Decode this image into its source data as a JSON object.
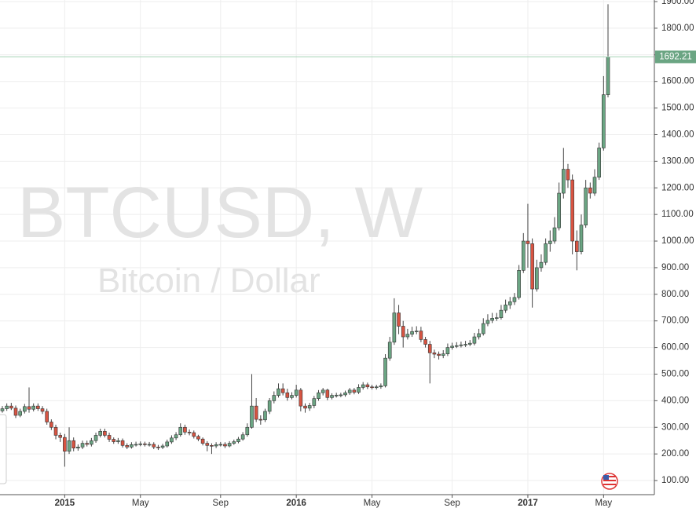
{
  "chart_data": {
    "type": "candlestick",
    "title": "BTCUSD, W",
    "subtitle": "Bitcoin / Dollar",
    "categories": [
      null,
      null,
      null,
      null,
      null,
      null,
      null,
      null,
      null,
      null,
      null,
      null,
      null,
      null,
      "2015",
      null,
      null,
      null,
      null,
      null,
      null,
      null,
      null,
      null,
      null,
      null,
      null,
      null,
      null,
      null,
      null,
      "May",
      null,
      null,
      null,
      null,
      null,
      null,
      null,
      null,
      null,
      null,
      null,
      null,
      null,
      null,
      null,
      null,
      null,
      "Sep",
      null,
      null,
      null,
      null,
      null,
      null,
      null,
      null,
      null,
      null,
      null,
      null,
      null,
      null,
      null,
      null,
      "2016",
      null,
      null,
      null,
      null,
      null,
      null,
      null,
      null,
      null,
      null,
      null,
      null,
      null,
      null,
      null,
      null,
      "May",
      null,
      null,
      null,
      null,
      null,
      null,
      null,
      null,
      null,
      null,
      null,
      null,
      null,
      null,
      null,
      null,
      null,
      "Sep",
      null,
      null,
      null,
      null,
      null,
      null,
      null,
      null,
      null,
      null,
      null,
      null,
      null,
      null,
      null,
      null,
      "2017",
      null,
      null,
      null,
      null,
      null,
      null,
      null,
      null,
      null,
      null,
      null,
      null,
      null,
      null,
      null,
      null,
      "May",
      null
    ],
    "open": [
      362,
      370,
      380,
      372,
      345,
      360,
      378,
      368,
      380,
      370,
      360,
      320,
      300,
      270,
      262,
      210,
      250,
      222,
      226,
      240,
      236,
      250,
      270,
      285,
      270,
      255,
      246,
      250,
      232,
      226,
      235,
      236,
      238,
      235,
      236,
      226,
      225,
      230,
      245,
      260,
      272,
      300,
      282,
      280,
      266,
      256,
      240,
      232,
      230,
      235,
      236,
      230,
      240,
      246,
      256,
      272,
      300,
      380,
      330,
      328,
      360,
      400,
      420,
      445,
      430,
      412,
      420,
      440,
      380,
      372,
      382,
      408,
      430,
      440,
      412,
      420,
      421,
      422,
      430,
      440,
      432,
      450,
      460,
      452,
      450,
      452,
      456,
      560,
      620,
      730,
      680,
      640,
      650,
      660,
      662,
      630,
      612,
      580,
      575,
      570,
      576,
      600,
      605,
      607,
      610,
      612,
      616,
      640,
      652,
      690,
      702,
      710,
      712,
      740,
      760,
      772,
      788,
      890,
      1000,
      990,
      820,
      900,
      920,
      990,
      1000,
      1050,
      1180,
      1270,
      1230,
      1000,
      960,
      1060,
      1200,
      1180,
      1240,
      1350,
      1550
    ],
    "high": [
      380,
      390,
      392,
      382,
      370,
      388,
      450,
      390,
      390,
      380,
      370,
      330,
      310,
      280,
      275,
      300,
      262,
      236,
      250,
      250,
      260,
      280,
      295,
      295,
      280,
      262,
      260,
      258,
      240,
      244,
      246,
      247,
      246,
      245,
      244,
      234,
      238,
      254,
      270,
      282,
      315,
      310,
      292,
      288,
      272,
      262,
      248,
      240,
      244,
      245,
      244,
      248,
      254,
      264,
      282,
      315,
      500,
      410,
      345,
      370,
      410,
      435,
      465,
      465,
      445,
      432,
      460,
      448,
      390,
      392,
      418,
      440,
      448,
      445,
      428,
      430,
      430,
      438,
      448,
      448,
      462,
      470,
      468,
      460,
      460,
      465,
      575,
      640,
      785,
      760,
      700,
      670,
      678,
      680,
      678,
      640,
      625,
      592,
      585,
      590,
      615,
      618,
      620,
      622,
      625,
      628,
      655,
      670,
      710,
      725,
      730,
      730,
      760,
      780,
      790,
      805,
      910,
      1030,
      1140,
      1010,
      930,
      950,
      1010,
      1040,
      1090,
      1220,
      1350,
      1290,
      1250,
      1040,
      1100,
      1230,
      1220,
      1270,
      1370,
      1620,
      1890
    ],
    "low": [
      355,
      362,
      365,
      335,
      338,
      352,
      355,
      360,
      362,
      350,
      310,
      290,
      255,
      245,
      152,
      200,
      210,
      212,
      218,
      228,
      228,
      242,
      262,
      262,
      245,
      238,
      238,
      224,
      218,
      220,
      228,
      229,
      228,
      228,
      218,
      215,
      218,
      224,
      238,
      252,
      265,
      272,
      270,
      258,
      248,
      232,
      210,
      200,
      222,
      228,
      222,
      225,
      234,
      240,
      250,
      265,
      295,
      320,
      310,
      320,
      350,
      390,
      412,
      420,
      400,
      405,
      412,
      360,
      355,
      362,
      372,
      400,
      420,
      402,
      405,
      412,
      413,
      415,
      422,
      424,
      425,
      442,
      444,
      442,
      442,
      445,
      450,
      550,
      610,
      650,
      600,
      630,
      640,
      650,
      620,
      600,
      465,
      560,
      555,
      560,
      568,
      592,
      598,
      600,
      602,
      605,
      608,
      630,
      645,
      680,
      692,
      700,
      705,
      730,
      745,
      760,
      780,
      880,
      900,
      750,
      810,
      885,
      910,
      960,
      990,
      1040,
      1160,
      1200,
      950,
      890,
      950,
      1050,
      1160,
      1170,
      1230,
      1340,
      1540
    ],
    "close": [
      370,
      380,
      372,
      345,
      360,
      378,
      368,
      380,
      370,
      360,
      320,
      300,
      270,
      262,
      210,
      250,
      222,
      226,
      240,
      236,
      250,
      270,
      285,
      270,
      255,
      246,
      250,
      232,
      226,
      235,
      236,
      238,
      235,
      236,
      226,
      225,
      230,
      245,
      260,
      272,
      300,
      282,
      280,
      266,
      256,
      240,
      232,
      230,
      235,
      236,
      230,
      240,
      246,
      256,
      272,
      300,
      380,
      330,
      328,
      360,
      400,
      420,
      445,
      430,
      412,
      420,
      440,
      380,
      372,
      382,
      408,
      430,
      440,
      412,
      420,
      421,
      422,
      430,
      440,
      432,
      450,
      460,
      452,
      450,
      452,
      456,
      560,
      620,
      730,
      680,
      640,
      650,
      660,
      662,
      630,
      612,
      580,
      575,
      570,
      576,
      600,
      605,
      607,
      610,
      612,
      616,
      640,
      652,
      690,
      702,
      710,
      712,
      740,
      760,
      772,
      788,
      890,
      1000,
      990,
      820,
      900,
      920,
      990,
      1000,
      1050,
      1180,
      1270,
      1230,
      1000,
      960,
      1060,
      1200,
      1180,
      1240,
      1350,
      1550,
      1692.21
    ],
    "ylim": [
      47,
      1906
    ],
    "yticks": [
      {
        "value": 100,
        "label": "100.00"
      },
      {
        "value": 200,
        "label": "200.00"
      },
      {
        "value": 300,
        "label": "300.00"
      },
      {
        "value": 400,
        "label": "400.00"
      },
      {
        "value": 500,
        "label": "500.00"
      },
      {
        "value": 600,
        "label": "600.00"
      },
      {
        "value": 700,
        "label": "700.00"
      },
      {
        "value": 800,
        "label": "800.00"
      },
      {
        "value": 900,
        "label": "900.00"
      },
      {
        "value": 1000,
        "label": "1000.00"
      },
      {
        "value": 1100,
        "label": "1100.00"
      },
      {
        "value": 1200,
        "label": "1200.00"
      },
      {
        "value": 1300,
        "label": "1300.00"
      },
      {
        "value": 1400,
        "label": "1400.00"
      },
      {
        "value": 1500,
        "label": "1500.00"
      },
      {
        "value": 1600,
        "label": "1600.00"
      },
      {
        "value": 1700,
        "label": "1700.00"
      },
      {
        "value": 1800,
        "label": "1800.00"
      },
      {
        "value": 1900,
        "label": "1900.00"
      }
    ],
    "grid": true,
    "colors": {
      "up": "#6ba583",
      "down": "#d75442",
      "wick": "#444444",
      "price_line": "#a8d4b8"
    }
  }
}
